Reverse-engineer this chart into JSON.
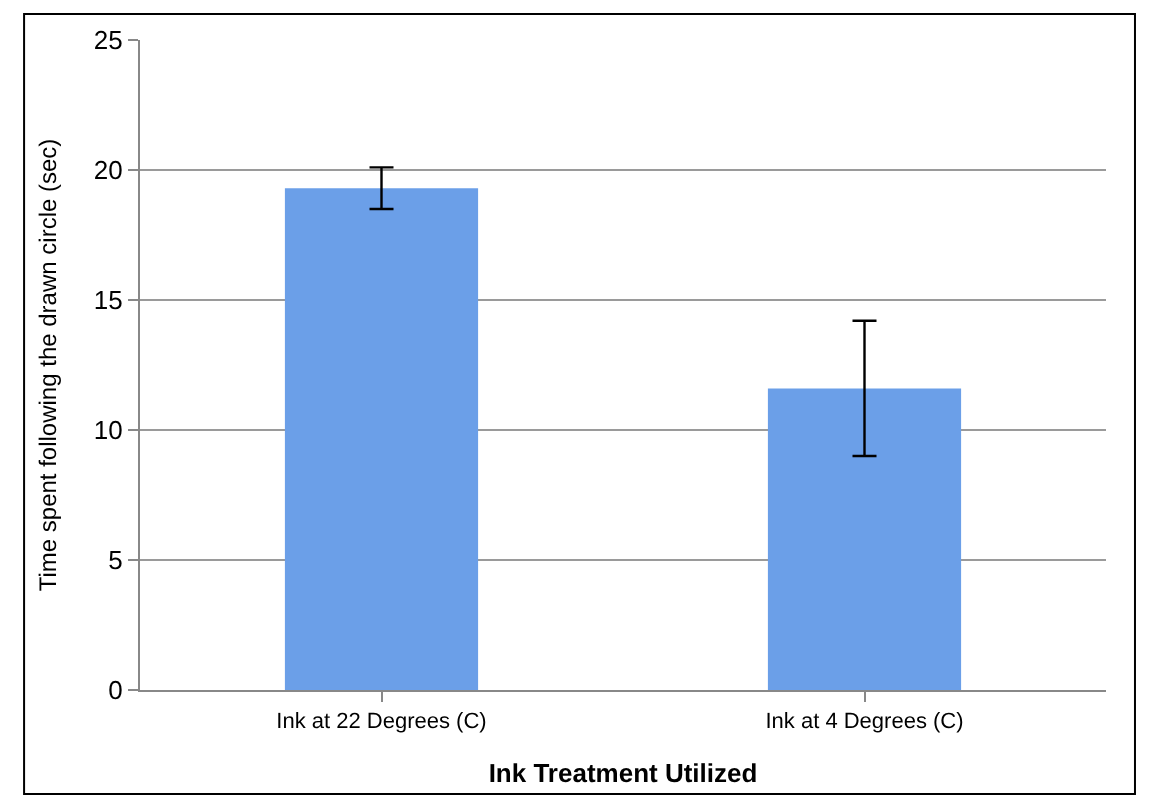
{
  "chart_data": {
    "type": "bar",
    "categories": [
      "Ink at 22 Degrees (C)",
      "Ink at 4 Degrees (C)"
    ],
    "values": [
      19.3,
      11.6
    ],
    "errors": [
      0.8,
      2.6
    ],
    "color": "#6b9fe8",
    "xlabel": "Ink Treatment Utilized",
    "ylabel": "Time spent following the drawn circle (sec)",
    "ylim": [
      0,
      25
    ],
    "yticks": [
      0,
      5,
      10,
      15,
      20,
      25
    ],
    "grid": "y",
    "legend": false
  }
}
